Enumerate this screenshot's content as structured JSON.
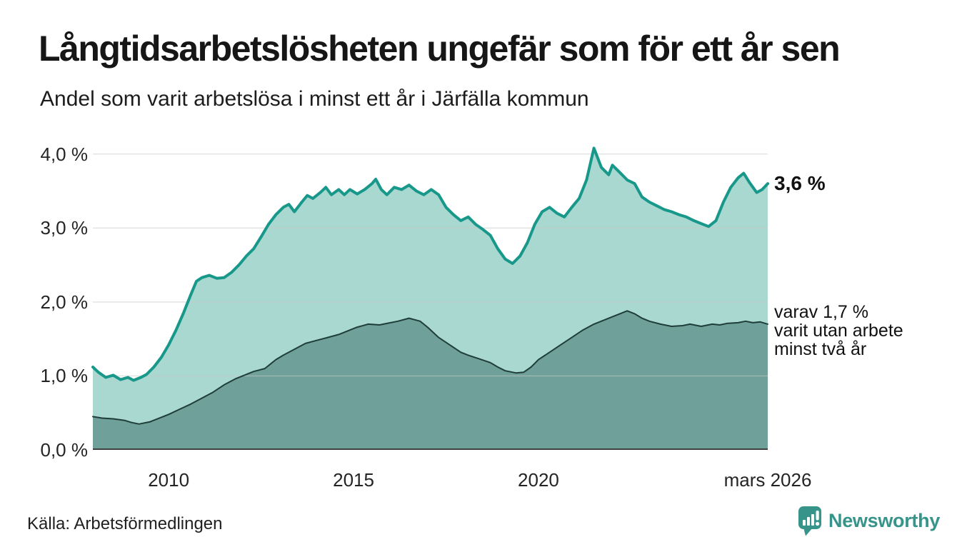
{
  "header": {
    "title": "Långtidsarbetslösheten ungefär som för ett år sen",
    "subtitle": "Andel som varit arbetslösa i minst ett år i Järfälla kommun"
  },
  "annotations": {
    "end_value": "3,6 %",
    "end_anchor": 3.6,
    "secondary_lines": [
      "varav 1,7 %",
      "varit utan arbete",
      "minst två år"
    ],
    "secondary_anchor": 1.7
  },
  "footer": {
    "source": "Källa: Arbetsförmedlingen",
    "brand": "Newsworthy",
    "brand_icon": "bar-chart-pin-icon"
  },
  "colors": {
    "line_1yr": "#17988a",
    "fill_1yr": "#a8d8d0",
    "line_2yr": "#1f3e39",
    "fill_2yr": "#6fa099",
    "grid": "#c9c9c9",
    "axis": "#3f3f3f",
    "brand": "#37948a",
    "text": "#161616"
  },
  "chart_data": {
    "type": "area",
    "title": "Långtidsarbetslösheten ungefär som för ett år sen",
    "subtitle": "Andel som varit arbetslösa i minst ett år i Järfälla kommun",
    "source": "Källa: Arbetsförmedlingen",
    "unit": "%",
    "xlim": [
      2007.95,
      2026.2
    ],
    "ylim": [
      0,
      4.2
    ],
    "grid": true,
    "legend_position": "annotated-right",
    "x_ticks": [
      {
        "x": 2010,
        "label": "2010"
      },
      {
        "x": 2015,
        "label": "2015"
      },
      {
        "x": 2020,
        "label": "2020"
      },
      {
        "x": 2026.2,
        "label": "mars 2026"
      }
    ],
    "y_ticks": [
      {
        "v": 4,
        "label": "4,0 %"
      },
      {
        "v": 3,
        "label": "3,0 %"
      },
      {
        "v": 2,
        "label": "2,0 %"
      },
      {
        "v": 1,
        "label": "1,0 %"
      },
      {
        "v": 0,
        "label": "0,0 %"
      }
    ],
    "series": [
      {
        "name": "arbetslösa minst ett år",
        "end_label": "3,6 %",
        "points": [
          [
            2007.95,
            1.12
          ],
          [
            2008.1,
            1.05
          ],
          [
            2008.3,
            0.98
          ],
          [
            2008.5,
            1.01
          ],
          [
            2008.7,
            0.95
          ],
          [
            2008.9,
            0.98
          ],
          [
            2009.05,
            0.94
          ],
          [
            2009.25,
            0.98
          ],
          [
            2009.4,
            1.02
          ],
          [
            2009.6,
            1.12
          ],
          [
            2009.8,
            1.25
          ],
          [
            2010.0,
            1.42
          ],
          [
            2010.2,
            1.62
          ],
          [
            2010.4,
            1.85
          ],
          [
            2010.6,
            2.1
          ],
          [
            2010.75,
            2.28
          ],
          [
            2010.9,
            2.33
          ],
          [
            2011.1,
            2.36
          ],
          [
            2011.3,
            2.32
          ],
          [
            2011.5,
            2.33
          ],
          [
            2011.7,
            2.4
          ],
          [
            2011.9,
            2.5
          ],
          [
            2012.1,
            2.62
          ],
          [
            2012.3,
            2.72
          ],
          [
            2012.5,
            2.88
          ],
          [
            2012.7,
            3.05
          ],
          [
            2012.9,
            3.18
          ],
          [
            2013.1,
            3.28
          ],
          [
            2013.25,
            3.32
          ],
          [
            2013.4,
            3.22
          ],
          [
            2013.6,
            3.35
          ],
          [
            2013.75,
            3.44
          ],
          [
            2013.9,
            3.4
          ],
          [
            2014.1,
            3.48
          ],
          [
            2014.25,
            3.55
          ],
          [
            2014.4,
            3.45
          ],
          [
            2014.6,
            3.52
          ],
          [
            2014.75,
            3.45
          ],
          [
            2014.9,
            3.52
          ],
          [
            2015.1,
            3.46
          ],
          [
            2015.3,
            3.52
          ],
          [
            2015.5,
            3.6
          ],
          [
            2015.6,
            3.66
          ],
          [
            2015.75,
            3.52
          ],
          [
            2015.9,
            3.45
          ],
          [
            2016.1,
            3.55
          ],
          [
            2016.3,
            3.52
          ],
          [
            2016.5,
            3.58
          ],
          [
            2016.7,
            3.5
          ],
          [
            2016.9,
            3.45
          ],
          [
            2017.1,
            3.52
          ],
          [
            2017.3,
            3.45
          ],
          [
            2017.5,
            3.28
          ],
          [
            2017.7,
            3.18
          ],
          [
            2017.9,
            3.1
          ],
          [
            2018.1,
            3.15
          ],
          [
            2018.3,
            3.05
          ],
          [
            2018.5,
            2.98
          ],
          [
            2018.7,
            2.9
          ],
          [
            2018.9,
            2.72
          ],
          [
            2019.1,
            2.58
          ],
          [
            2019.3,
            2.52
          ],
          [
            2019.5,
            2.62
          ],
          [
            2019.7,
            2.8
          ],
          [
            2019.9,
            3.05
          ],
          [
            2020.1,
            3.22
          ],
          [
            2020.3,
            3.28
          ],
          [
            2020.5,
            3.2
          ],
          [
            2020.7,
            3.15
          ],
          [
            2020.9,
            3.28
          ],
          [
            2021.1,
            3.4
          ],
          [
            2021.3,
            3.65
          ],
          [
            2021.5,
            4.08
          ],
          [
            2021.7,
            3.82
          ],
          [
            2021.9,
            3.72
          ],
          [
            2022.0,
            3.85
          ],
          [
            2022.2,
            3.75
          ],
          [
            2022.4,
            3.65
          ],
          [
            2022.6,
            3.6
          ],
          [
            2022.8,
            3.42
          ],
          [
            2023.0,
            3.35
          ],
          [
            2023.2,
            3.3
          ],
          [
            2023.4,
            3.25
          ],
          [
            2023.6,
            3.22
          ],
          [
            2023.8,
            3.18
          ],
          [
            2024.0,
            3.15
          ],
          [
            2024.2,
            3.1
          ],
          [
            2024.4,
            3.06
          ],
          [
            2024.6,
            3.02
          ],
          [
            2024.8,
            3.1
          ],
          [
            2025.0,
            3.35
          ],
          [
            2025.2,
            3.55
          ],
          [
            2025.4,
            3.68
          ],
          [
            2025.55,
            3.74
          ],
          [
            2025.7,
            3.62
          ],
          [
            2025.9,
            3.48
          ],
          [
            2026.05,
            3.52
          ],
          [
            2026.2,
            3.6
          ]
        ]
      },
      {
        "name": "varav utan arbete minst två år",
        "end_label": "varav 1,7 % varit utan arbete minst två år",
        "points": [
          [
            2007.95,
            0.45
          ],
          [
            2008.2,
            0.43
          ],
          [
            2008.5,
            0.42
          ],
          [
            2008.8,
            0.4
          ],
          [
            2009.0,
            0.37
          ],
          [
            2009.2,
            0.35
          ],
          [
            2009.5,
            0.38
          ],
          [
            2009.8,
            0.44
          ],
          [
            2010.0,
            0.48
          ],
          [
            2010.3,
            0.55
          ],
          [
            2010.6,
            0.62
          ],
          [
            2010.9,
            0.7
          ],
          [
            2011.2,
            0.78
          ],
          [
            2011.5,
            0.88
          ],
          [
            2011.8,
            0.96
          ],
          [
            2012.0,
            1.0
          ],
          [
            2012.3,
            1.06
          ],
          [
            2012.6,
            1.1
          ],
          [
            2012.9,
            1.22
          ],
          [
            2013.1,
            1.28
          ],
          [
            2013.4,
            1.36
          ],
          [
            2013.7,
            1.44
          ],
          [
            2014.0,
            1.48
          ],
          [
            2014.3,
            1.52
          ],
          [
            2014.6,
            1.56
          ],
          [
            2014.9,
            1.62
          ],
          [
            2015.1,
            1.66
          ],
          [
            2015.4,
            1.7
          ],
          [
            2015.7,
            1.69
          ],
          [
            2016.0,
            1.72
          ],
          [
            2016.2,
            1.74
          ],
          [
            2016.5,
            1.78
          ],
          [
            2016.8,
            1.74
          ],
          [
            2017.0,
            1.66
          ],
          [
            2017.3,
            1.52
          ],
          [
            2017.6,
            1.42
          ],
          [
            2017.9,
            1.32
          ],
          [
            2018.1,
            1.28
          ],
          [
            2018.4,
            1.23
          ],
          [
            2018.7,
            1.18
          ],
          [
            2018.9,
            1.12
          ],
          [
            2019.1,
            1.07
          ],
          [
            2019.4,
            1.04
          ],
          [
            2019.6,
            1.05
          ],
          [
            2019.8,
            1.12
          ],
          [
            2020.0,
            1.22
          ],
          [
            2020.3,
            1.32
          ],
          [
            2020.6,
            1.42
          ],
          [
            2020.9,
            1.52
          ],
          [
            2021.2,
            1.62
          ],
          [
            2021.5,
            1.7
          ],
          [
            2021.8,
            1.76
          ],
          [
            2022.0,
            1.8
          ],
          [
            2022.2,
            1.84
          ],
          [
            2022.4,
            1.88
          ],
          [
            2022.6,
            1.84
          ],
          [
            2022.8,
            1.78
          ],
          [
            2023.0,
            1.74
          ],
          [
            2023.3,
            1.7
          ],
          [
            2023.6,
            1.67
          ],
          [
            2023.9,
            1.68
          ],
          [
            2024.1,
            1.7
          ],
          [
            2024.4,
            1.67
          ],
          [
            2024.7,
            1.7
          ],
          [
            2024.9,
            1.69
          ],
          [
            2025.1,
            1.71
          ],
          [
            2025.4,
            1.72
          ],
          [
            2025.6,
            1.74
          ],
          [
            2025.8,
            1.72
          ],
          [
            2026.0,
            1.73
          ],
          [
            2026.2,
            1.7
          ]
        ]
      }
    ]
  }
}
